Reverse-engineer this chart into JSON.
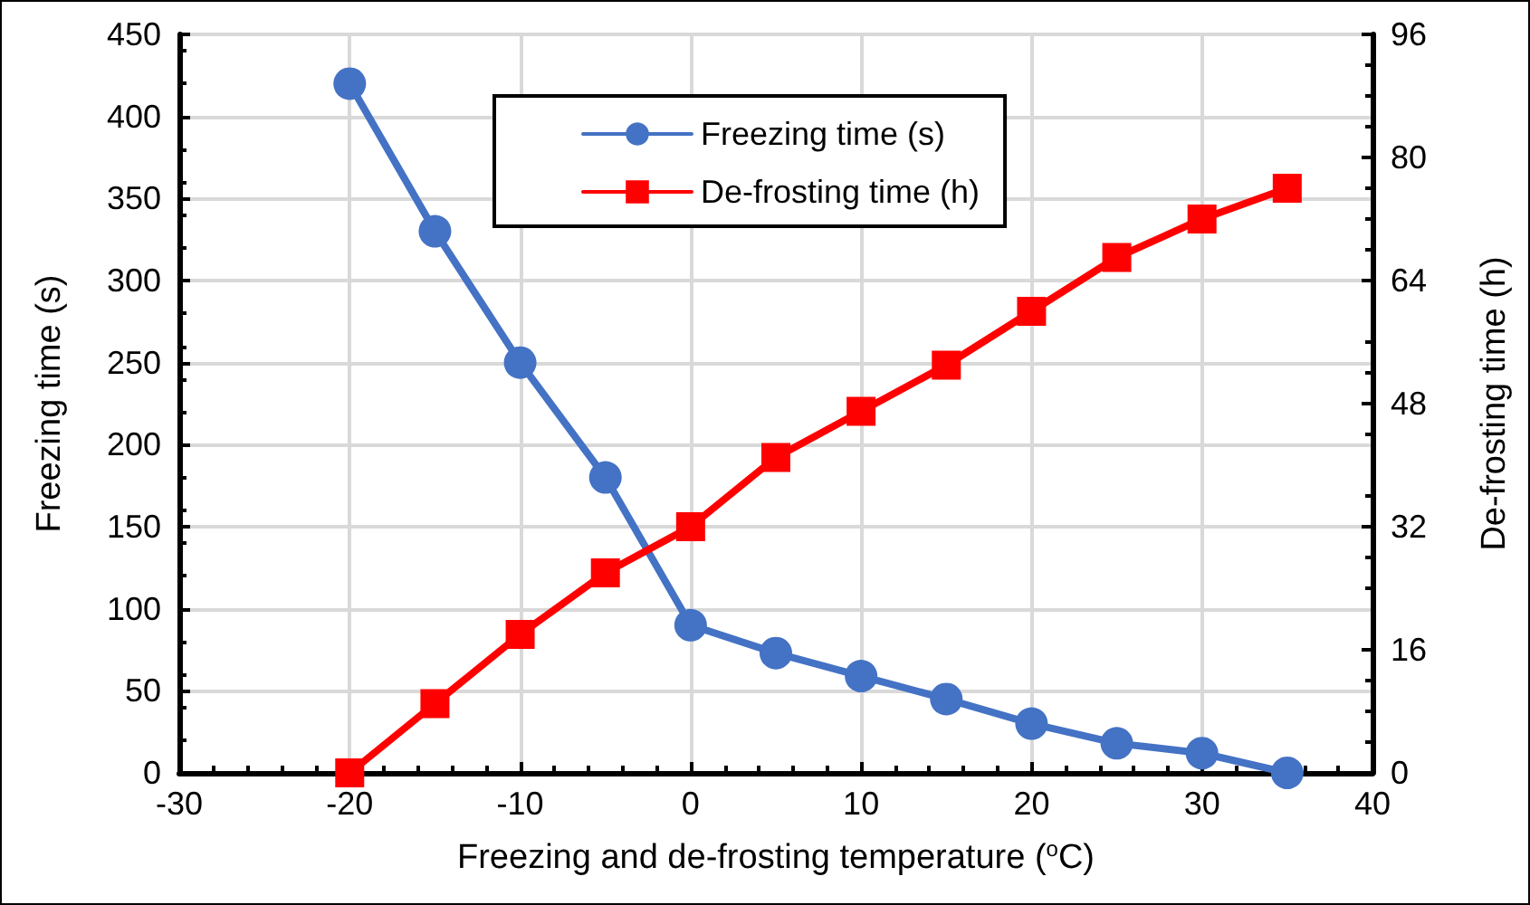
{
  "chart_data": {
    "type": "line",
    "xlabel": "Freezing and de-frosting temperature ($^{o}$C)",
    "ylabel": "Freezing time (s)",
    "y2label": "De-frosting time (h)",
    "x": [
      -20,
      -15,
      -10,
      -5,
      0,
      5,
      10,
      15,
      20,
      25,
      30,
      35
    ],
    "series": [
      {
        "name": "Freezing time (s)",
        "color": "#4472c4",
        "marker": "circle",
        "values": [
          420,
          330,
          250,
          180,
          90,
          73,
          59,
          45,
          30,
          18,
          12,
          0
        ]
      },
      {
        "name": "De-frosting time (h)",
        "color": "#ff0000",
        "marker": "square",
        "axis": "y2",
        "values": [
          0,
          9,
          18,
          26,
          32,
          41,
          47,
          53,
          60,
          67,
          72,
          76
        ]
      }
    ],
    "xlim": [
      -30,
      40
    ],
    "xticks": [
      -30,
      -20,
      -10,
      0,
      10,
      20,
      30,
      40
    ],
    "ylim": [
      0,
      450
    ],
    "yticks": [
      0,
      50,
      100,
      150,
      200,
      250,
      300,
      350,
      400,
      450
    ],
    "y2lim": [
      0,
      96
    ],
    "y2ticks": [
      0,
      16,
      32,
      48,
      64,
      80,
      96
    ],
    "grid": true,
    "legend": "top",
    "line_style": "solid"
  }
}
